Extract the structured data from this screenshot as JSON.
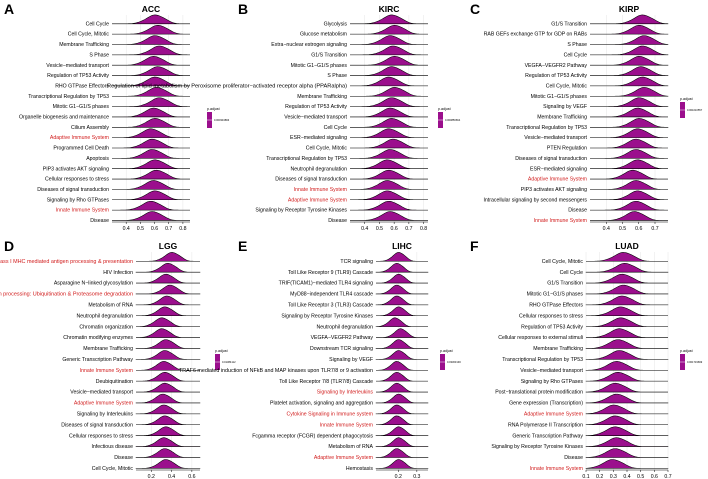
{
  "chart_data": [
    {
      "type": "ridgeline",
      "panel": "A",
      "title": "ACC",
      "xlim": [
        0.3,
        0.85
      ],
      "ticks": [
        "0.4",
        "0.5",
        "0.6",
        "0.7",
        "0.8"
      ],
      "legend_title": "p.adjust",
      "legend_value": "0.000334893",
      "categories": [
        "Cell Cycle",
        "Cell Cycle, Mitotic",
        "Membrane Trafficking",
        "S Phase",
        "Vesicle−mediated transport",
        "Regulation of TP53 Activity",
        "RHO GTPase Effectors",
        "Transcriptional Regulation by TP53",
        "Mitotic G1−G1/S phases",
        "Organelle biogenesis and maintenance",
        "Cilium Assembly",
        "Adaptive Immune System",
        "Programmed Cell Death",
        "Apoptosis",
        "PIP3 activates AKT signaling",
        "Cellular responses to stress",
        "Diseases of signal transduction",
        "Signaling by Rho GTPases",
        "Innate Immune System",
        "Disease"
      ],
      "highlight": [
        "Adaptive Immune System",
        "Innate Immune System"
      ],
      "peaks": [
        0.6,
        0.62,
        0.6,
        0.63,
        0.59,
        0.62,
        0.6,
        0.61,
        0.63,
        0.59,
        0.6,
        0.57,
        0.58,
        0.58,
        0.6,
        0.61,
        0.59,
        0.6,
        0.57,
        0.58
      ]
    },
    {
      "type": "ridgeline",
      "panel": "B",
      "title": "KIRC",
      "xlim": [
        0.3,
        0.83
      ],
      "ticks": [
        "0.4",
        "0.5",
        "0.6",
        "0.7",
        "0.8"
      ],
      "legend_title": "p.adjust",
      "legend_value": "0.000856664",
      "categories": [
        "Glycolysis",
        "Glucose metabolism",
        "Extra−nuclear estrogen signaling",
        "G1/S Transition",
        "Mitotic G1−G1/S phases",
        "S Phase",
        "Regulation of lipid metabolism by Peroxisome proliferator−activated receptor alpha (PPARalpha)",
        "Membrane Trafficking",
        "Regulation of TP53 Activity",
        "Vesicle−mediated transport",
        "Cell Cycle",
        "ESR−mediated signaling",
        "Cell Cycle, Mitotic",
        "Transcriptional Regulation by TP53",
        "Neutrophil degranulation",
        "Diseases of signal transduction",
        "Innate Immune System",
        "Adaptive Immune System",
        "Signaling by Receptor Tyrosine Kinases",
        "Disease"
      ],
      "highlight": [
        "Innate Immune System",
        "Adaptive Immune System"
      ],
      "peaks": [
        0.58,
        0.6,
        0.57,
        0.59,
        0.6,
        0.58,
        0.56,
        0.6,
        0.58,
        0.57,
        0.58,
        0.56,
        0.59,
        0.57,
        0.55,
        0.56,
        0.55,
        0.55,
        0.56,
        0.57
      ]
    },
    {
      "type": "ridgeline",
      "panel": "C",
      "title": "KIRP",
      "xlim": [
        0.3,
        0.78
      ],
      "ticks": [
        "0.4",
        "0.5",
        "0.6",
        "0.7"
      ],
      "legend_title": "p.adjust",
      "legend_value": "0.001010557",
      "categories": [
        "G1/S Transition",
        "RAB GEFs exchange GTP for GDP on RABs",
        "S Phase",
        "Cell Cycle",
        "VEGFA−VEGFR2 Pathway",
        "Regulation of TP53 Activity",
        "Cell Cycle, Mitotic",
        "Mitotic G1−G1/S phases",
        "Signaling by VEGF",
        "Membrane Trafficking",
        "Transcriptional Regulation by TP53",
        "Vesicle−mediated transport",
        "PTEN Regulation",
        "Diseases of signal transduction",
        "ESR−mediated signaling",
        "Adaptive Immune System",
        "PIP3 activates AKT signaling",
        "Intracellular signaling by second messengers",
        "Disease",
        "Innate Immune System"
      ],
      "highlight": [
        "Adaptive Immune System",
        "Innate Immune System"
      ],
      "peaks": [
        0.62,
        0.6,
        0.63,
        0.62,
        0.6,
        0.61,
        0.62,
        0.63,
        0.6,
        0.59,
        0.6,
        0.59,
        0.58,
        0.58,
        0.59,
        0.56,
        0.58,
        0.59,
        0.58,
        0.57
      ]
    },
    {
      "type": "ridgeline",
      "panel": "D",
      "title": "LGG",
      "xlim": [
        0.05,
        0.68
      ],
      "ticks": [
        "0.2",
        "0.4",
        "0.6"
      ],
      "legend_title": "p.adjust",
      "legend_value": "0.01384112",
      "categories": [
        "Class I MHC mediated antigen processing & presentation",
        "HIV Infection",
        "Asparagine N−linked glycosylation",
        "Antigen processing: Ubiquitination & Proteasome degradation",
        "Metabolism of RNA",
        "Neutrophil degranulation",
        "Chromatin organization",
        "Chromatin modifying enzymes",
        "Membrane Trafficking",
        "Generic Transcription Pathway",
        "Innate Immune System",
        "Deubiquitination",
        "Vesicle−mediated transport",
        "Adaptive Immune System",
        "Signaling by Interleukins",
        "Diseases of signal transduction",
        "Cellular responses to stress",
        "Infectious disease",
        "Disease",
        "Cell Cycle, Mitotic"
      ],
      "highlight": [
        "Class I MHC mediated antigen processing & presentation",
        "Antigen processing: Ubiquitination & Proteasome degradation",
        "Innate Immune System",
        "Adaptive Immune System"
      ],
      "peaks": [
        0.4,
        0.36,
        0.34,
        0.38,
        0.35,
        0.33,
        0.3,
        0.3,
        0.34,
        0.33,
        0.32,
        0.33,
        0.33,
        0.31,
        0.32,
        0.33,
        0.34,
        0.32,
        0.33,
        0.34
      ]
    },
    {
      "type": "ridgeline",
      "panel": "E",
      "title": "LIHC",
      "xlim": [
        0.08,
        0.36
      ],
      "ticks": [
        "0.2",
        "0.3"
      ],
      "legend_title": "p.adjust",
      "legend_value": "0.03303193",
      "categories": [
        "TCR signaling",
        "Toll Like Receptor 9 (TLR9) Cascade",
        "TRIF(TICAM1)−mediated TLR4 signaling",
        "MyD88−independent TLR4 cascade",
        "Toll Like Receptor 3 (TLR3) Cascade",
        "Signaling by Receptor Tyrosine Kinases",
        "Neutrophil degranulation",
        "VEGFA−VEGFR2 Pathway",
        "Downstream TCR signaling",
        "Signaling by VEGF",
        "TRAF6 mediated induction of NFkB and MAP kinases upon TLR7/8 or 9 activation",
        "Toll Like Receptor 7/8 (TLR7/8) Cascade",
        "Signaling by Interleukins",
        "Platelet activation, signaling and aggregation",
        "Cytokine Signaling in Immune system",
        "Innate Immune System",
        "Fcgamma receptor (FCGR) dependent phagocytosis",
        "Metabolism of RNA",
        "Adaptive Immune System",
        "Hemostasis"
      ],
      "highlight": [
        "Signaling by Interleukins",
        "Cytokine Signaling in Immune system",
        "Innate Immune System",
        "Adaptive Immune System"
      ],
      "peaks": [
        0.2,
        0.19,
        0.2,
        0.19,
        0.19,
        0.2,
        0.18,
        0.21,
        0.2,
        0.2,
        0.19,
        0.19,
        0.19,
        0.2,
        0.19,
        0.19,
        0.2,
        0.2,
        0.19,
        0.2
      ]
    },
    {
      "type": "ridgeline",
      "panel": "F",
      "title": "LUAD",
      "xlim": [
        0.1,
        0.7
      ],
      "ticks": [
        "0.1",
        "0.2",
        "0.3",
        "0.4",
        "0.5",
        "0.6",
        "0.7"
      ],
      "legend_title": "p.adjust",
      "legend_value": "0.001719699",
      "categories": [
        "Cell Cycle, Mitotic",
        "Cell Cycle",
        "G1/S Transition",
        "Mitotic G1−G1/S phases",
        "RHO GTPase Effectors",
        "Cellular responses to stress",
        "Regulation of TP53 Activity",
        "Cellular responses to external stimuli",
        "Membrane Trafficking",
        "Transcriptional Regulation by TP53",
        "Vesicle−mediated transport",
        "Signaling by Rho GTPases",
        "Post−translational protein modification",
        "Gene expression (Transcription)",
        "Adaptive Immune System",
        "RNA Polymerase II Transcription",
        "Generic Transcription Pathway",
        "Signaling by Receptor Tyrosine Kinases",
        "Disease",
        "Innate Immune System"
      ],
      "highlight": [
        "Adaptive Immune System",
        "Innate Immune System"
      ],
      "peaks": [
        0.37,
        0.38,
        0.36,
        0.37,
        0.36,
        0.35,
        0.35,
        0.34,
        0.33,
        0.34,
        0.32,
        0.33,
        0.31,
        0.32,
        0.3,
        0.31,
        0.31,
        0.32,
        0.31,
        0.29
      ]
    }
  ]
}
